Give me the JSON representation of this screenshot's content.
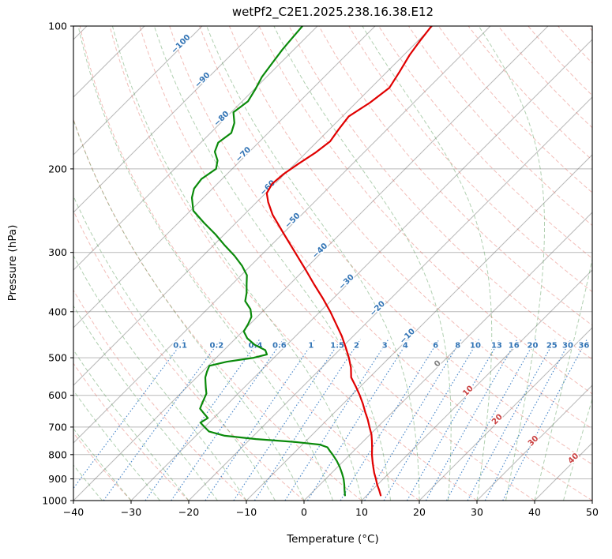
{
  "title": "wetPf2_C2E1.2025.238.16.38.E12",
  "axes": {
    "x": {
      "label": "Temperature (°C)",
      "ticks": [
        -40,
        -30,
        -20,
        -10,
        0,
        10,
        20,
        30,
        40,
        50
      ],
      "tick_labels": [
        "−40",
        "−30",
        "−20",
        "−10",
        "0",
        "10",
        "20",
        "30",
        "40",
        "50"
      ]
    },
    "y": {
      "label": "Pressure (hPa)",
      "scale": "log",
      "ticks": [
        100,
        200,
        300,
        400,
        500,
        600,
        700,
        800,
        900,
        1000
      ],
      "tick_labels": [
        "100",
        "200",
        "300",
        "400",
        "500",
        "600",
        "700",
        "800",
        "900",
        "1000"
      ]
    }
  },
  "chart_data": {
    "type": "line",
    "variant": "skew-t-log-p",
    "title": "wetPf2_C2E1.2025.238.16.38.E12",
    "xlabel": "Temperature (°C)",
    "ylabel": "Pressure (hPa)",
    "x_range": [
      -40,
      50
    ],
    "p_range": [
      100,
      1000
    ],
    "skew_deg_per_decade": 82.3,
    "series": [
      {
        "name": "temperature",
        "color": "#e00000",
        "pressure": [
          975,
          950,
          925,
          900,
          875,
          850,
          825,
          800,
          775,
          750,
          725,
          700,
          675,
          650,
          625,
          600,
          575,
          550,
          525,
          500,
          475,
          450,
          425,
          400,
          375,
          350,
          325,
          300,
          275,
          250,
          235,
          225,
          215,
          205,
          195,
          185,
          175,
          165,
          155,
          145,
          135,
          125,
          115,
          108,
          100
        ],
        "values": [
          12.4,
          11.2,
          9.9,
          8.7,
          7.4,
          6.2,
          5.0,
          3.8,
          2.7,
          1.5,
          0.2,
          -1.4,
          -3.0,
          -4.8,
          -6.6,
          -8.6,
          -10.8,
          -13.2,
          -14.9,
          -17.0,
          -19.4,
          -22.0,
          -25.0,
          -28.2,
          -31.8,
          -35.8,
          -40.0,
          -44.6,
          -49.6,
          -55.0,
          -58.0,
          -59.8,
          -60.5,
          -60.2,
          -59.4,
          -58.4,
          -57.8,
          -58.4,
          -58.9,
          -57.6,
          -56.8,
          -57.8,
          -59.0,
          -59.6,
          -60.2
        ]
      },
      {
        "name": "dewpoint",
        "color": "#0a8a0a",
        "pressure": [
          975,
          950,
          925,
          900,
          875,
          850,
          825,
          800,
          785,
          772,
          762,
          752,
          742,
          730,
          715,
          700,
          685,
          670,
          655,
          640,
          625,
          610,
          595,
          580,
          565,
          550,
          535,
          520,
          510,
          500,
          492,
          482,
          470,
          455,
          440,
          425,
          410,
          395,
          380,
          365,
          350,
          335,
          320,
          305,
          290,
          275,
          260,
          245,
          230,
          220,
          210,
          200,
          192,
          184,
          176,
          168,
          160,
          152,
          144,
          136,
          128,
          120,
          112,
          106,
          100
        ],
        "values": [
          6.2,
          5.2,
          4.2,
          3.1,
          1.8,
          0.4,
          -1.2,
          -3.0,
          -4.2,
          -5.2,
          -7.0,
          -12.0,
          -19.0,
          -25.0,
          -28.5,
          -30.0,
          -31.5,
          -31.0,
          -32.5,
          -34.0,
          -34.5,
          -35.0,
          -35.5,
          -36.5,
          -37.5,
          -38.5,
          -39.2,
          -39.8,
          -37.5,
          -33.5,
          -31.8,
          -32.8,
          -35.5,
          -38.0,
          -39.8,
          -40.3,
          -41.0,
          -42.5,
          -44.8,
          -46.0,
          -47.5,
          -49.0,
          -51.5,
          -54.5,
          -58.0,
          -61.5,
          -65.5,
          -69.5,
          -72.0,
          -73.2,
          -73.6,
          -72.8,
          -74.0,
          -76.0,
          -77.0,
          -76.4,
          -77.6,
          -79.6,
          -79.0,
          -79.8,
          -80.8,
          -81.4,
          -82.0,
          -82.3,
          -82.6
        ]
      }
    ],
    "background": {
      "pressure_grid_color": "rgba(115,115,115,0.5)",
      "isotherms": {
        "start": -160,
        "end": 50,
        "step": 10,
        "color": "rgba(115,115,115,0.5)"
      },
      "isotherm_labels": {
        "negative_color": "#3274b5",
        "zero_color": "#7f7f7f",
        "positive_color": "#c94040",
        "items": [
          {
            "t": -100,
            "p": 110,
            "label": "−100"
          },
          {
            "t": -90,
            "p": 131,
            "label": "−90"
          },
          {
            "t": -80,
            "p": 158,
            "label": "−80"
          },
          {
            "t": -70,
            "p": 188,
            "label": "−70"
          },
          {
            "t": -60,
            "p": 221,
            "label": "−60"
          },
          {
            "t": -50,
            "p": 259,
            "label": "−50"
          },
          {
            "t": -40,
            "p": 300,
            "label": "−40"
          },
          {
            "t": -30,
            "p": 349,
            "label": "−30"
          },
          {
            "t": -20,
            "p": 397,
            "label": "−20"
          },
          {
            "t": -10,
            "p": 454,
            "label": "−10"
          },
          {
            "t": 0,
            "p": 519,
            "label": "0"
          },
          {
            "t": 10,
            "p": 592,
            "label": "10"
          },
          {
            "t": 20,
            "p": 680,
            "label": "20"
          },
          {
            "t": 30,
            "p": 755,
            "label": "30"
          },
          {
            "t": 40,
            "p": 822,
            "label": "40"
          }
        ]
      },
      "dry_adiabats": {
        "start": -40,
        "end": 200,
        "step": 10,
        "color": "rgba(227,108,98,0.45)"
      },
      "moist_adiabats": {
        "start": -40,
        "end": 45,
        "step": 5,
        "color": "rgba(82,150,82,0.45)"
      },
      "mixing_ratios": {
        "values": [
          0.1,
          0.2,
          0.4,
          0.6,
          1,
          1.5,
          2,
          3,
          4,
          6,
          8,
          10,
          13,
          16,
          20,
          25,
          30,
          36
        ],
        "labels": [
          "0.1",
          "0.2",
          "0.4",
          "0.6",
          "1",
          "1.5",
          "2",
          "3",
          "4",
          "6",
          "8",
          "10",
          "13",
          "16",
          "20",
          "25",
          "30",
          "36"
        ],
        "label_pressure": 470,
        "top_pressure": 455,
        "color": "rgba(35,110,190,0.8)",
        "label_color": "#3274b5"
      }
    }
  }
}
